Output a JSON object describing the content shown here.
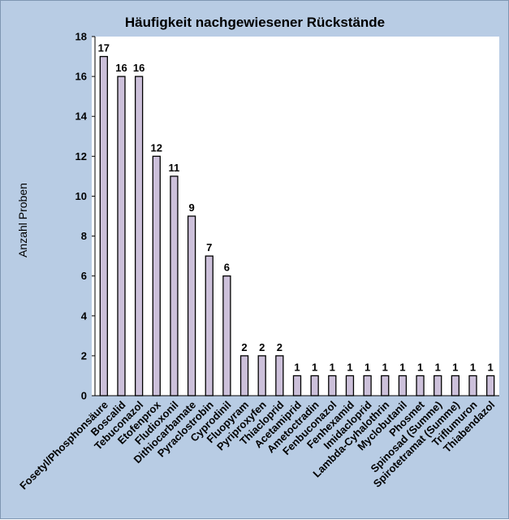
{
  "chart_data": {
    "type": "bar",
    "title": "Häufigkeit nachgewiesener Rückstände",
    "xlabel": "",
    "ylabel": "Anzahl Proben",
    "ylim": [
      0,
      18
    ],
    "yticks": [
      0,
      2,
      4,
      6,
      8,
      10,
      12,
      14,
      16,
      18
    ],
    "grid": false,
    "legend": "none",
    "categories": [
      "Fosetyl/Phosphonsäure",
      "Boscalid",
      "Tebuconazol",
      "Etofenprox",
      "Fludioxonil",
      "Dithiocarbamate",
      "Pyraclostrobin",
      "Cyprodinil",
      "Fluopyram",
      "Pyriproxyfen",
      "Thiacloprid",
      "Acetamiprid",
      "Ametoctradin",
      "Fenbuconazol",
      "Fenhexamid",
      "Imidacloprid",
      "Lambda-Cyhalothrin",
      "Myclobutanil",
      "Phosmet",
      "Spinosad (Summe)",
      "Spirotetramat (Summe)",
      "Triflumuron",
      "Thiabendazol"
    ],
    "values": [
      17,
      16,
      16,
      12,
      11,
      9,
      7,
      6,
      2,
      2,
      2,
      1,
      1,
      1,
      1,
      1,
      1,
      1,
      1,
      1,
      1,
      1,
      1
    ],
    "data_labels": [
      "17",
      "16",
      "16",
      "12",
      "11",
      "9",
      "7",
      "6",
      "2",
      "2",
      "2",
      "1",
      "1",
      "1",
      "1",
      "1",
      "1",
      "1",
      "1",
      "1",
      "1",
      "1",
      "1"
    ],
    "colors": {
      "bar_fill": "#ccc0da",
      "bar_stroke": "#000000",
      "plot_background": "#ffffff",
      "chart_background": "#b8cce4"
    }
  }
}
